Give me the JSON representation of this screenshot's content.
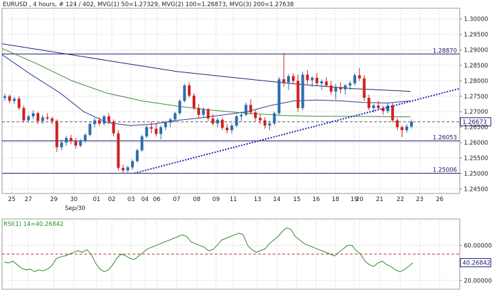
{
  "main_header": {
    "symbol": "EURUSD",
    "tf": "4 hours",
    "bars": "# 124 / 402",
    "mvg1": "MVG(1) 50=1.27329",
    "mvg2": "MVG(2) 100=1.26873",
    "mvg3": "MVG(3) 200=1.27638"
  },
  "rsi_header": "RSI(1) 14=40.26842",
  "colors": {
    "background": "#ffffff",
    "grid": "#c9c9c9",
    "up_candle": "#2b6cb0",
    "down_candle": "#d02020",
    "mvg1": "#2e3a8c",
    "mvg2": "#3a8a3a",
    "mvg3": "#1a2a6a",
    "trendline": "#2222bb",
    "hline": "#1a1a6e",
    "current_price": "#555555",
    "rsi": "#2e8b2e",
    "rsi_threshold": "#b03030",
    "price_tag": "#1a1a6e"
  },
  "chart_data": {
    "type": "candlestick",
    "x_tick_labels": [
      "25",
      "27",
      "29",
      "30",
      "01",
      "02",
      "03",
      "04",
      "06",
      "07",
      "08",
      "09",
      "11",
      "13",
      "14",
      "15",
      "16",
      "18",
      "19",
      "20",
      "21",
      "22",
      "23",
      "26"
    ],
    "month_label": "Sep/30",
    "y_tick_labels": [
      "1.30000",
      "1.29500",
      "1.29000",
      "1.28500",
      "1.28000",
      "1.27500",
      "1.27000",
      "1.26500",
      "1.26000",
      "1.25500",
      "1.25000",
      "1.24500"
    ],
    "ylim": [
      1.2435,
      1.3035
    ],
    "horizontal_lines": [
      {
        "value": 1.2887,
        "label": "1.28870"
      },
      {
        "value": 1.26053,
        "label": "1.26053"
      },
      {
        "value": 1.25006,
        "label": "1.25006"
      }
    ],
    "current_price": {
      "value": 1.26673,
      "label": "1.26673"
    },
    "trendline": {
      "from": [
        3.8,
        1.25006
      ],
      "to": [
        26.0,
        1.2775
      ]
    },
    "candles_ohlc": [
      [
        0.0,
        1.2745,
        1.2758,
        1.2735,
        1.275
      ],
      [
        0.5,
        1.275,
        1.2756,
        1.2728,
        1.2735
      ],
      [
        1.0,
        1.2735,
        1.2748,
        1.2725,
        1.2742
      ],
      [
        1.5,
        1.2742,
        1.275,
        1.2705,
        1.2712
      ],
      [
        2.0,
        1.2712,
        1.272,
        1.2665,
        1.2672
      ],
      [
        2.5,
        1.2672,
        1.269,
        1.2665,
        1.2685
      ],
      [
        3.0,
        1.2685,
        1.2705,
        1.2675,
        1.2695
      ],
      [
        3.5,
        1.2695,
        1.27,
        1.266,
        1.267
      ],
      [
        4.0,
        1.267,
        1.269,
        1.266,
        1.2682
      ],
      [
        4.5,
        1.2682,
        1.2695,
        1.2672,
        1.2678
      ],
      [
        5.0,
        1.2678,
        1.2684,
        1.266,
        1.267
      ],
      [
        5.5,
        1.267,
        1.2675,
        1.257,
        1.2585
      ],
      [
        6.0,
        1.2585,
        1.261,
        1.2575,
        1.26
      ],
      [
        6.5,
        1.26,
        1.2622,
        1.259,
        1.2615
      ],
      [
        7.0,
        1.2615,
        1.2625,
        1.2595,
        1.2605
      ],
      [
        7.5,
        1.2605,
        1.2615,
        1.258,
        1.259
      ],
      [
        8.0,
        1.259,
        1.2612,
        1.2585,
        1.2605
      ],
      [
        8.5,
        1.2605,
        1.263,
        1.26,
        1.2625
      ],
      [
        9.0,
        1.2625,
        1.2665,
        1.262,
        1.266
      ],
      [
        9.5,
        1.266,
        1.268,
        1.265,
        1.2672
      ],
      [
        10.0,
        1.2672,
        1.2682,
        1.2655,
        1.2662
      ],
      [
        10.5,
        1.2662,
        1.269,
        1.2655,
        1.2685
      ],
      [
        11.0,
        1.2685,
        1.2695,
        1.266,
        1.2668
      ],
      [
        11.5,
        1.2668,
        1.2675,
        1.262,
        1.263
      ],
      [
        12.0,
        1.263,
        1.264,
        1.251,
        1.2518
      ],
      [
        12.5,
        1.2518,
        1.2528,
        1.2502,
        1.251
      ],
      [
        13.0,
        1.251,
        1.2525,
        1.25,
        1.252
      ],
      [
        13.5,
        1.252,
        1.2545,
        1.2512,
        1.254
      ],
      [
        14.0,
        1.254,
        1.258,
        1.2535,
        1.2575
      ],
      [
        14.5,
        1.2575,
        1.2625,
        1.257,
        1.262
      ],
      [
        15.0,
        1.262,
        1.2655,
        1.2615,
        1.265
      ],
      [
        15.5,
        1.265,
        1.2668,
        1.263,
        1.2645
      ],
      [
        16.0,
        1.2645,
        1.266,
        1.262,
        1.2628
      ],
      [
        16.5,
        1.2628,
        1.2655,
        1.261,
        1.265
      ],
      [
        17.0,
        1.265,
        1.267,
        1.264,
        1.2665
      ],
      [
        17.5,
        1.2665,
        1.268,
        1.265,
        1.2675
      ],
      [
        18.0,
        1.2675,
        1.27,
        1.2665,
        1.2695
      ],
      [
        18.5,
        1.2695,
        1.274,
        1.269,
        1.2735
      ],
      [
        19.0,
        1.2735,
        1.279,
        1.273,
        1.2785
      ],
      [
        19.5,
        1.2785,
        1.2795,
        1.2745,
        1.2752
      ],
      [
        20.0,
        1.2752,
        1.276,
        1.2705,
        1.2712
      ],
      [
        20.5,
        1.2712,
        1.2725,
        1.268,
        1.269
      ],
      [
        21.0,
        1.269,
        1.2715,
        1.2682,
        1.2708
      ],
      [
        21.5,
        1.2708,
        1.2712,
        1.267,
        1.2678
      ],
      [
        22.0,
        1.2678,
        1.2692,
        1.2655,
        1.2662
      ],
      [
        22.5,
        1.2662,
        1.268,
        1.265,
        1.2674
      ],
      [
        23.0,
        1.2674,
        1.268,
        1.264,
        1.2648
      ],
      [
        23.5,
        1.2648,
        1.266,
        1.263,
        1.264
      ],
      [
        24.0,
        1.264,
        1.2662,
        1.263,
        1.2655
      ],
      [
        24.5,
        1.2655,
        1.269,
        1.265,
        1.2685
      ],
      [
        25.0,
        1.2685,
        1.27,
        1.267,
        1.269
      ],
      [
        25.5,
        1.269,
        1.273,
        1.2685,
        1.2722
      ],
      [
        26.0,
        1.2722,
        1.274,
        1.269,
        1.2698
      ],
      [
        26.5,
        1.2698,
        1.2705,
        1.267,
        1.268
      ],
      [
        27.0,
        1.268,
        1.269,
        1.266,
        1.2672
      ],
      [
        27.5,
        1.2672,
        1.2682,
        1.2645,
        1.2655
      ],
      [
        28.0,
        1.2655,
        1.267,
        1.264,
        1.2662
      ],
      [
        28.5,
        1.2662,
        1.27,
        1.2655,
        1.2695
      ],
      [
        29.0,
        1.2695,
        1.2812,
        1.269,
        1.2805
      ],
      [
        29.5,
        1.2805,
        1.289,
        1.278,
        1.2795
      ],
      [
        30.0,
        1.2795,
        1.2822,
        1.277,
        1.2815
      ],
      [
        30.5,
        1.2815,
        1.2825,
        1.279,
        1.28
      ],
      [
        31.0,
        1.28,
        1.282,
        1.27,
        1.2712
      ],
      [
        31.5,
        1.2712,
        1.283,
        1.2705,
        1.282
      ],
      [
        32.0,
        1.282,
        1.2835,
        1.279,
        1.2802
      ],
      [
        32.5,
        1.2802,
        1.2815,
        1.278,
        1.281
      ],
      [
        33.0,
        1.281,
        1.2825,
        1.2785,
        1.2792
      ],
      [
        33.5,
        1.2792,
        1.2805,
        1.277,
        1.2798
      ],
      [
        34.0,
        1.2798,
        1.2812,
        1.278,
        1.2785
      ],
      [
        34.5,
        1.2785,
        1.28,
        1.2755,
        1.2765
      ],
      [
        35.0,
        1.2765,
        1.279,
        1.274,
        1.278
      ],
      [
        35.5,
        1.278,
        1.2795,
        1.276,
        1.2772
      ],
      [
        36.0,
        1.2772,
        1.279,
        1.2755,
        1.2785
      ],
      [
        36.5,
        1.2785,
        1.28,
        1.277,
        1.2792
      ],
      [
        37.0,
        1.2792,
        1.2825,
        1.2785,
        1.2818
      ],
      [
        37.5,
        1.2818,
        1.2842,
        1.28,
        1.2808
      ],
      [
        38.0,
        1.2808,
        1.2818,
        1.2735,
        1.2745
      ],
      [
        38.5,
        1.2745,
        1.2755,
        1.2705,
        1.2712
      ],
      [
        39.0,
        1.2712,
        1.2725,
        1.2698,
        1.272
      ],
      [
        39.5,
        1.272,
        1.2735,
        1.2705,
        1.2712
      ],
      [
        40.0,
        1.2712,
        1.272,
        1.269,
        1.2702
      ],
      [
        40.5,
        1.2702,
        1.2728,
        1.2695,
        1.272
      ],
      [
        41.0,
        1.272,
        1.2728,
        1.2665,
        1.2672
      ],
      [
        41.5,
        1.2672,
        1.268,
        1.264,
        1.265
      ],
      [
        42.0,
        1.265,
        1.2655,
        1.2618,
        1.264
      ],
      [
        42.5,
        1.264,
        1.266,
        1.2632,
        1.2652
      ],
      [
        43.0,
        1.2652,
        1.2675,
        1.2645,
        1.2667
      ]
    ],
    "candle_x_to_day_index_scale": 0.53,
    "moving_averages": [
      {
        "series": "mvg1",
        "points": [
          [
            0,
            1.2885
          ],
          [
            5,
            1.282
          ],
          [
            10,
            1.276
          ],
          [
            14,
            1.27
          ],
          [
            18,
            1.2665
          ],
          [
            22,
            1.2655
          ],
          [
            26,
            1.266
          ],
          [
            30,
            1.2672
          ],
          [
            34,
            1.268
          ],
          [
            38,
            1.269
          ],
          [
            42,
            1.27
          ],
          [
            46,
            1.272
          ],
          [
            50,
            1.2735
          ],
          [
            54,
            1.2738
          ],
          [
            58,
            1.2735
          ],
          [
            62,
            1.273
          ],
          [
            66,
            1.2728
          ],
          [
            70,
            1.2735
          ]
        ]
      },
      {
        "series": "mvg2",
        "points": [
          [
            0,
            1.2905
          ],
          [
            6,
            1.2855
          ],
          [
            12,
            1.28
          ],
          [
            18,
            1.276
          ],
          [
            24,
            1.2735
          ],
          [
            30,
            1.2718
          ],
          [
            36,
            1.2705
          ],
          [
            42,
            1.2695
          ],
          [
            48,
            1.2688
          ],
          [
            54,
            1.2685
          ],
          [
            60,
            1.2685
          ],
          [
            66,
            1.2684
          ],
          [
            70,
            1.2683
          ]
        ]
      },
      {
        "series": "mvg3",
        "points": [
          [
            0,
            1.292
          ],
          [
            10,
            1.289
          ],
          [
            20,
            1.286
          ],
          [
            30,
            1.283
          ],
          [
            40,
            1.281
          ],
          [
            50,
            1.279
          ],
          [
            60,
            1.2775
          ],
          [
            70,
            1.2766
          ]
        ]
      }
    ],
    "rsi": {
      "ylim": [
        10,
        90
      ],
      "y_tick_labels": [
        "60.00000",
        "20.00000"
      ],
      "threshold": 50,
      "current": {
        "value": 40.26842,
        "label": "40.26842"
      },
      "values": [
        41,
        40,
        42,
        38,
        34,
        32,
        33,
        30,
        32,
        31,
        33,
        37,
        45,
        47,
        48,
        50,
        52,
        54,
        52,
        55,
        50,
        40,
        33,
        30,
        32,
        38,
        46,
        50,
        48,
        45,
        44,
        48,
        52,
        56,
        58,
        60,
        62,
        64,
        66,
        68,
        70,
        72,
        70,
        64,
        62,
        60,
        58,
        54,
        55,
        60,
        66,
        68,
        70,
        72,
        74,
        72,
        60,
        55,
        52,
        54,
        56,
        62,
        66,
        70,
        76,
        80,
        78,
        70,
        66,
        62,
        60,
        58,
        56,
        54,
        52,
        50,
        48,
        52,
        56,
        60,
        60,
        54,
        50,
        42,
        38,
        36,
        40,
        42,
        38,
        36,
        32,
        30,
        32,
        36,
        40
      ]
    }
  }
}
